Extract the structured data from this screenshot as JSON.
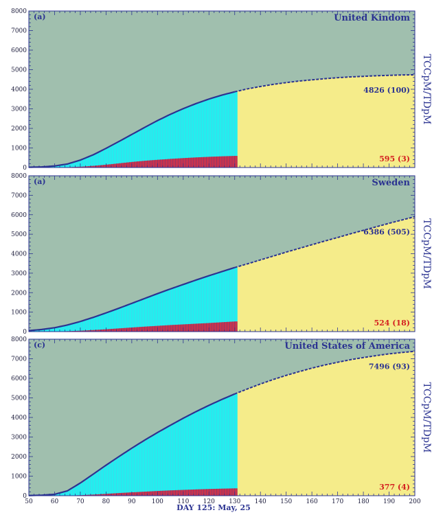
{
  "colors": {
    "background": "#a0bfae",
    "cases_fill": "#22efef",
    "cases_bar_line": "#6fb4e2",
    "deaths_fill": "#c8344e",
    "deaths_bar_line": "#5a3a82",
    "forecast_fill": "#f5ec8a",
    "curve": "#2b3391",
    "axis_text": "#2b3391",
    "case_label": "#2b3391",
    "death_label": "#d42020"
  },
  "xlabel": "DAY 125: May, 25",
  "chart_data": [
    {
      "type": "area",
      "panel_label": "(a)",
      "title": "United Kindom",
      "ylabel": "TCCpM/TDpM",
      "xlim": [
        50,
        200
      ],
      "ylim": [
        0,
        8000
      ],
      "x_ticks": [
        50,
        60,
        70,
        80,
        90,
        100,
        110,
        120,
        130,
        140,
        150,
        160,
        170,
        180,
        190,
        200
      ],
      "y_ticks": [
        0,
        1000,
        2000,
        3000,
        4000,
        5000,
        6000,
        7000,
        8000
      ],
      "data_end_day": 130,
      "cases_curve": {
        "x": [
          50,
          55,
          60,
          65,
          70,
          75,
          80,
          85,
          90,
          95,
          100,
          105,
          110,
          115,
          120,
          125,
          130,
          135,
          140,
          145,
          150,
          155,
          160,
          165,
          170,
          175,
          180,
          185,
          190,
          195,
          200
        ],
        "y": [
          15,
          30,
          80,
          180,
          380,
          650,
          980,
          1330,
          1690,
          2050,
          2400,
          2720,
          3010,
          3270,
          3500,
          3700,
          3870,
          4020,
          4140,
          4250,
          4340,
          4420,
          4480,
          4540,
          4590,
          4630,
          4660,
          4690,
          4710,
          4730,
          4740
        ]
      },
      "deaths_curve": {
        "x": [
          50,
          55,
          60,
          65,
          70,
          75,
          80,
          85,
          90,
          95,
          100,
          105,
          110,
          115,
          120,
          125,
          130
        ],
        "y": [
          0,
          2,
          8,
          20,
          45,
          90,
          150,
          220,
          290,
          350,
          400,
          445,
          485,
          520,
          550,
          575,
          595
        ]
      },
      "cases_label": "4826 (100)",
      "deaths_label": "595 (3)"
    },
    {
      "type": "area",
      "panel_label": "(a)",
      "title": "Sweden",
      "ylabel": "TCCpM/TDpM",
      "xlim": [
        50,
        200
      ],
      "ylim": [
        0,
        8000
      ],
      "x_ticks": [
        50,
        60,
        70,
        80,
        90,
        100,
        110,
        120,
        130,
        140,
        150,
        160,
        170,
        180,
        190,
        200
      ],
      "y_ticks": [
        0,
        1000,
        2000,
        3000,
        4000,
        5000,
        6000,
        7000,
        8000
      ],
      "data_end_day": 130,
      "cases_curve": {
        "x": [
          50,
          55,
          60,
          65,
          70,
          75,
          80,
          85,
          90,
          95,
          100,
          105,
          110,
          115,
          120,
          125,
          130,
          135,
          140,
          145,
          150,
          155,
          160,
          165,
          170,
          175,
          180,
          185,
          190,
          195,
          200
        ],
        "y": [
          50,
          110,
          200,
          340,
          520,
          730,
          960,
          1200,
          1450,
          1700,
          1950,
          2190,
          2420,
          2650,
          2870,
          3080,
          3290,
          3480,
          3680,
          3880,
          4080,
          4270,
          4460,
          4650,
          4830,
          5020,
          5200,
          5380,
          5560,
          5730,
          5900
        ]
      },
      "deaths_curve": {
        "x": [
          50,
          55,
          60,
          65,
          70,
          75,
          80,
          85,
          90,
          95,
          100,
          105,
          110,
          115,
          120,
          125,
          130
        ],
        "y": [
          0,
          3,
          10,
          25,
          50,
          85,
          125,
          170,
          215,
          260,
          300,
          340,
          375,
          410,
          445,
          485,
          524
        ]
      },
      "cases_label": "6386 (505)",
      "deaths_label": "524 (18)"
    },
    {
      "type": "area",
      "panel_label": "(c)",
      "title": "United States of America",
      "ylabel": "TCCpM/TDpM",
      "xlim": [
        50,
        200
      ],
      "ylim": [
        0,
        8000
      ],
      "x_ticks": [
        50,
        60,
        70,
        80,
        90,
        100,
        110,
        120,
        130,
        140,
        150,
        160,
        170,
        180,
        190,
        200
      ],
      "y_ticks": [
        0,
        1000,
        2000,
        3000,
        4000,
        5000,
        6000,
        7000,
        8000
      ],
      "data_end_day": 130,
      "cases_curve": {
        "x": [
          50,
          55,
          60,
          65,
          70,
          75,
          80,
          85,
          90,
          95,
          100,
          105,
          110,
          115,
          120,
          125,
          130,
          135,
          140,
          145,
          150,
          155,
          160,
          165,
          170,
          175,
          180,
          185,
          190,
          195,
          200
        ],
        "y": [
          10,
          25,
          70,
          250,
          650,
          1100,
          1560,
          2000,
          2430,
          2840,
          3230,
          3600,
          3960,
          4300,
          4620,
          4920,
          5200,
          5460,
          5710,
          5940,
          6150,
          6340,
          6520,
          6680,
          6820,
          6950,
          7060,
          7160,
          7250,
          7320,
          7380
        ]
      },
      "deaths_curve": {
        "x": [
          50,
          55,
          60,
          65,
          70,
          75,
          80,
          85,
          90,
          95,
          100,
          105,
          110,
          115,
          120,
          125,
          130
        ],
        "y": [
          0,
          1,
          3,
          10,
          30,
          60,
          100,
          140,
          175,
          210,
          245,
          275,
          300,
          325,
          345,
          362,
          377
        ]
      },
      "cases_label": "7496 (93)",
      "deaths_label": "377 (4)"
    }
  ]
}
